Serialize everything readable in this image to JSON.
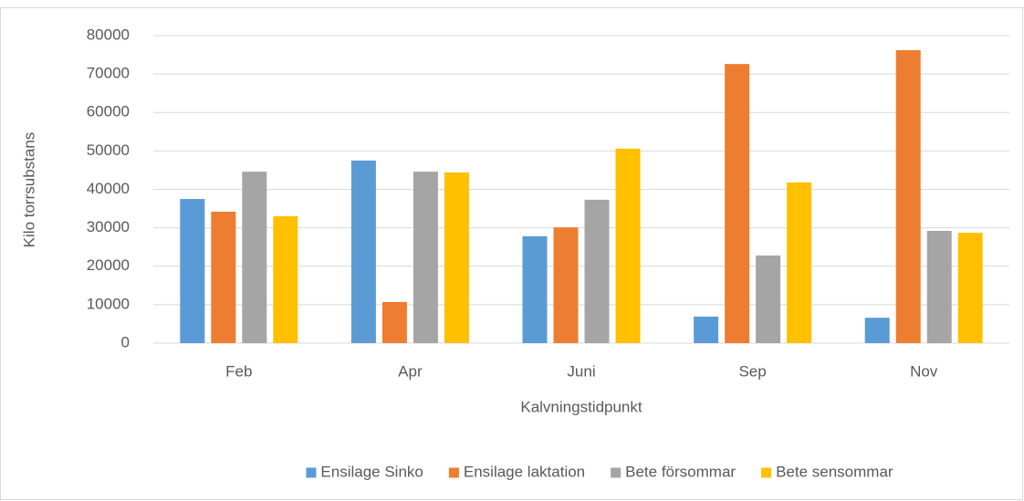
{
  "chart_data": {
    "type": "bar",
    "x_label": "Kalvningstidpunkt",
    "y_label": "Kilo torrsubstans",
    "categories": [
      "Feb",
      "Apr",
      "Juni",
      "Sep",
      "Nov"
    ],
    "series": [
      {
        "name": "Ensilage Sinko",
        "color": "#5b9bd5",
        "values": [
          37500,
          47500,
          27800,
          6900,
          6600
        ]
      },
      {
        "name": "Ensilage laktation",
        "color": "#ed7d31",
        "values": [
          34200,
          10700,
          30100,
          72600,
          76200
        ]
      },
      {
        "name": "Bete försommar",
        "color": "#a5a5a5",
        "values": [
          44600,
          44600,
          37300,
          22800,
          29200
        ]
      },
      {
        "name": "Bete sensommar",
        "color": "#ffc000",
        "values": [
          33000,
          44400,
          50600,
          41800,
          28700
        ]
      }
    ],
    "ylim": [
      0,
      80000
    ],
    "yticks": [
      0,
      10000,
      20000,
      30000,
      40000,
      50000,
      60000,
      70000,
      80000
    ],
    "grid": true,
    "legend": "bottom"
  }
}
